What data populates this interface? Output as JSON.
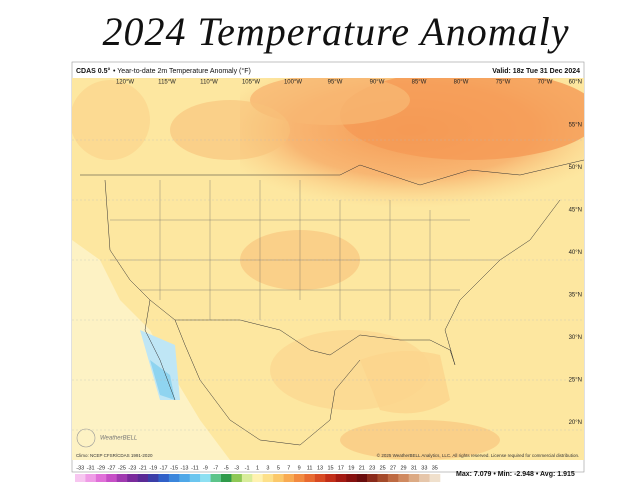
{
  "title": "2024 Temperature Anomaly",
  "map": {
    "model": "CDAS 0.5°",
    "description": "• Year-to-date 2m Temperature Anomaly (°F)",
    "valid": "Valid: 18z Tue 31 Dec 2024",
    "lon_labels": [
      "120°W",
      "115°W",
      "110°W",
      "105°W",
      "100°W",
      "95°W",
      "90°W",
      "85°W",
      "80°W",
      "75°W",
      "70°W"
    ],
    "lat_labels": [
      "60°N",
      "55°N",
      "50°N",
      "45°N",
      "40°N",
      "35°N",
      "30°N",
      "25°N",
      "20°N"
    ],
    "climo": "Climo: NCEP CFSR/CDAS 1991-2020",
    "copyright": "© 2025 WeatherBELL Analytics, LLC. All rights reserved. License required for commercial distribution.",
    "logo": "WeatherBELL",
    "stats": "Max: 7.079 • Min: -2.948 • Avg: 1.915"
  },
  "colorbar": {
    "ticks": [
      -33,
      -31,
      -29,
      -27,
      -25,
      -23,
      -21,
      -19,
      -17,
      -15,
      -13,
      -11,
      -9,
      -7,
      -5,
      -3,
      -1,
      1,
      3,
      5,
      7,
      9,
      11,
      13,
      15,
      17,
      19,
      21,
      23,
      25,
      27,
      29,
      31,
      33,
      35
    ],
    "colors": [
      "#f7c6f0",
      "#ef9ce6",
      "#e070d8",
      "#c64fc6",
      "#a03ab0",
      "#7a2a9c",
      "#5a2a96",
      "#3b3ea8",
      "#3060c8",
      "#3b86dc",
      "#4fa8e8",
      "#6cc6ef",
      "#8ee0f2",
      "#5cc48a",
      "#2f9a4a",
      "#8ec856",
      "#d8ec9a",
      "#fff2b0",
      "#fde08a",
      "#fbc86a",
      "#f8aa52",
      "#f28a40",
      "#e86a30",
      "#d84a22",
      "#c22e18",
      "#a41a12",
      "#86100e",
      "#6a0c0c",
      "#8a2a1a",
      "#a44a2a",
      "#be6a42",
      "#d08a60",
      "#dcaa84",
      "#e6c6aa",
      "#f0e0cc"
    ]
  }
}
